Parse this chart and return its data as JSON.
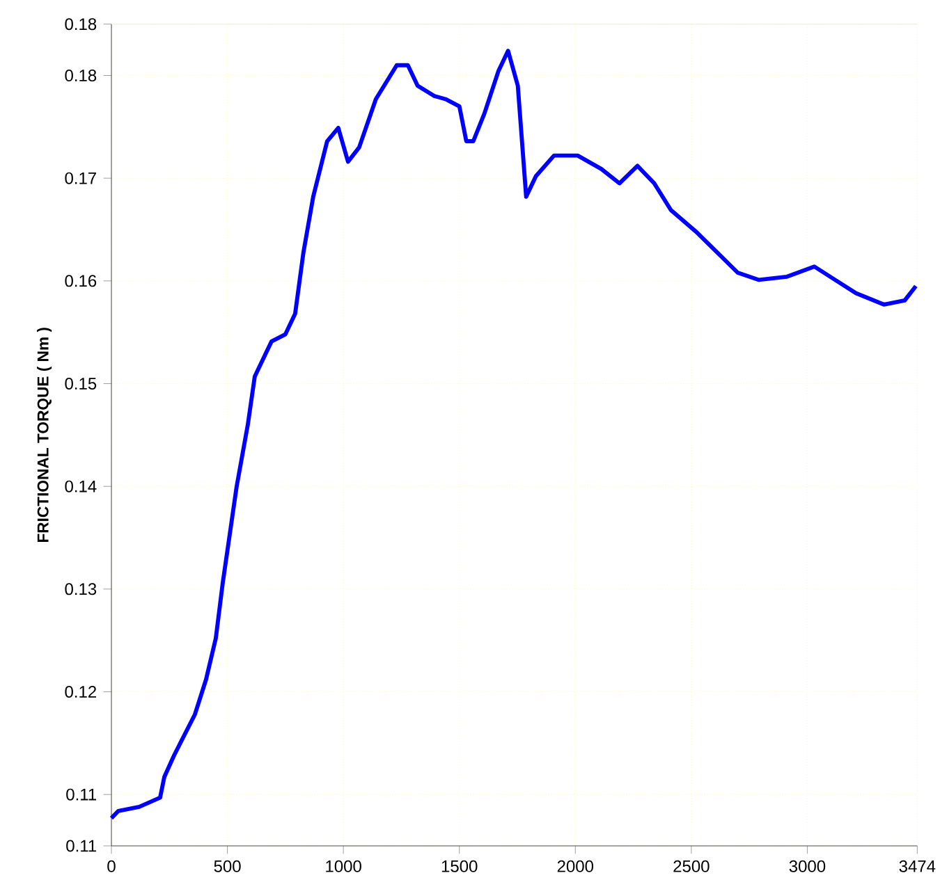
{
  "chart_data": {
    "type": "line",
    "ylabel": "FRICTIONAL TORQUE ( Nm )",
    "x": [
      0,
      30,
      120,
      210,
      228,
      270,
      360,
      408,
      450,
      480,
      540,
      588,
      618,
      690,
      750,
      792,
      828,
      870,
      930,
      978,
      1020,
      1068,
      1140,
      1230,
      1278,
      1320,
      1392,
      1440,
      1500,
      1530,
      1560,
      1608,
      1668,
      1710,
      1752,
      1788,
      1830,
      1908,
      2010,
      2112,
      2190,
      2268,
      2340,
      2412,
      2520,
      2610,
      2700,
      2790,
      2910,
      3030,
      3120,
      3210,
      3330,
      3420,
      3468
    ],
    "series": [
      {
        "color": "#0000ff",
        "values": [
          0.1077,
          0.1084,
          0.1088,
          0.1097,
          0.1117,
          0.1138,
          0.1178,
          0.1212,
          0.1252,
          0.1306,
          0.14,
          0.146,
          0.1507,
          0.1541,
          0.1548,
          0.1568,
          0.1628,
          0.1682,
          0.1736,
          0.1749,
          0.1716,
          0.173,
          0.1777,
          0.181,
          0.181,
          0.179,
          0.178,
          0.1777,
          0.177,
          0.1736,
          0.1736,
          0.1763,
          0.1804,
          0.1824,
          0.179,
          0.1682,
          0.1702,
          0.1722,
          0.1722,
          0.1709,
          0.1695,
          0.1712,
          0.1695,
          0.1669,
          0.1648,
          0.1628,
          0.1608,
          0.1601,
          0.1604,
          0.1614,
          0.1601,
          0.1588,
          0.1577,
          0.1581,
          0.1595
        ]
      }
    ],
    "xlim": [
      0,
      3474
    ],
    "xticks": [
      0,
      500,
      1000,
      1500,
      2000,
      2500,
      3000,
      3474
    ],
    "ylim": [
      0.105,
      0.185
    ],
    "yticks": [
      {
        "value": 0.105,
        "label": "0.11"
      },
      0.11,
      0.12,
      0.13,
      0.14,
      0.15,
      0.16,
      0.17,
      0.18,
      {
        "value": 0.185,
        "label": "0.18"
      }
    ],
    "grid": true,
    "line_style": "solid",
    "marker": "none"
  }
}
